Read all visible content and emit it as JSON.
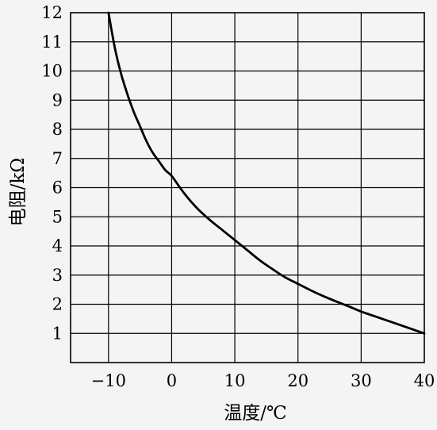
{
  "chart_data": {
    "type": "line",
    "xlabel": "温度/℃",
    "ylabel": "电阻/kΩ",
    "xlim": [
      -16,
      40
    ],
    "ylim": [
      0,
      12
    ],
    "x_ticks": [
      -10,
      0,
      10,
      20,
      30,
      40
    ],
    "y_ticks": [
      1,
      2,
      3,
      4,
      5,
      6,
      7,
      8,
      9,
      10,
      11,
      12
    ],
    "x_tick_labels": [
      "−10",
      "0",
      "10",
      "20",
      "30",
      "40"
    ],
    "y_tick_labels": [
      "1",
      "2",
      "3",
      "4",
      "5",
      "6",
      "7",
      "8",
      "9",
      "10",
      "11",
      "12"
    ],
    "grid": true,
    "series": [
      {
        "x": [
          -10,
          -9,
          -8,
          -7,
          -6,
          -5,
          -4,
          -3,
          -2,
          -1,
          0,
          2,
          4,
          6,
          8,
          10,
          12,
          14,
          16,
          18,
          20,
          22,
          24,
          26,
          28,
          30,
          32,
          34,
          36,
          38,
          40
        ],
        "values": [
          12,
          10.8,
          9.9,
          9.2,
          8.6,
          8.1,
          7.6,
          7.2,
          6.9,
          6.6,
          6.4,
          5.8,
          5.3,
          4.9,
          4.55,
          4.2,
          3.85,
          3.5,
          3.2,
          2.92,
          2.7,
          2.48,
          2.28,
          2.1,
          1.93,
          1.75,
          1.6,
          1.45,
          1.3,
          1.15,
          1.0
        ],
        "color": "#000000"
      }
    ],
    "colors": {
      "background": "#f4f4f4",
      "axis": "#000000",
      "grid": "#000000"
    }
  }
}
